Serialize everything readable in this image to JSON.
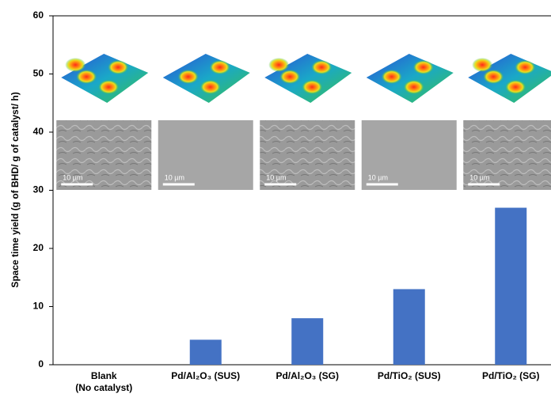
{
  "chart_data": {
    "type": "bar",
    "y_label": "Space time yield (g of BHD/ g of catalyst/ h)",
    "categories": [
      "Blank\n(No catalyst)",
      "Pd/Al₂O₃ (SUS)",
      "Pd/Al₂O₃ (SG)",
      "Pd/TiO₂ (SUS)",
      "Pd/TiO₂ (SG)"
    ],
    "values": [
      0,
      4.3,
      8,
      13,
      27
    ],
    "color": "#4472c4",
    "ylim": [
      0,
      60
    ],
    "yticks": [
      0,
      10,
      20,
      30,
      40,
      50,
      60
    ],
    "grid": false,
    "inset_scale_bars": [
      "10 µm",
      "10 µm",
      "10 µm",
      "10 µm",
      "10 µm"
    ]
  }
}
